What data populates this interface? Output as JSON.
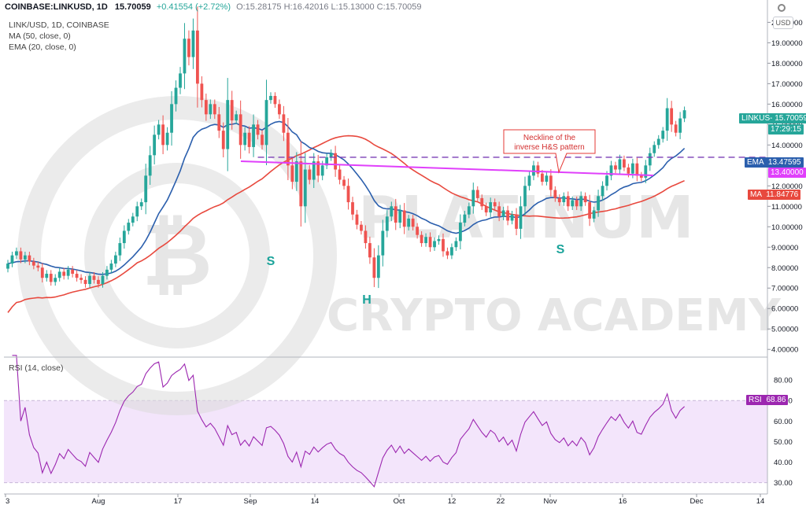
{
  "header": {
    "symbol": "COINBASE:LINKUSD, 1D",
    "price": "15.70059",
    "change": "+0.41554 (+2.72%)",
    "ohlc": "O:15.28175 H:16.42016 L:15.13000 C:15.70059",
    "subtitle": "LINK/USD, 1D, COINBASE",
    "ma_label": "MA (50, close, 0)",
    "ema_label": "EMA (20, close, 0)",
    "rsi_label": "RSI (14, close)",
    "currency": "USD"
  },
  "watermark": {
    "line1": "PLATINUM",
    "line2": "CRYPTO ACADEMY"
  },
  "annotations": {
    "neckline_line1": "Neckline of the",
    "neckline_line2": "inverse H&S pattern",
    "left_shoulder": "S",
    "head": "H",
    "right_shoulder": "S"
  },
  "tags": {
    "price_label": "LINKUS-",
    "price_value": "15.70059",
    "countdown": "17:29:15",
    "ema_label": "EMA",
    "ema_value": "13.47595",
    "level_value": "13.40000",
    "ma_label": "MA",
    "ma_value": "11.84776",
    "rsi_label": "RSI",
    "rsi_value": "68.86"
  },
  "colors": {
    "up": "#26a69a",
    "down": "#ef5350",
    "ema": "#2b5fad",
    "ma": "#e8493e",
    "neckline": "#e040fb",
    "dashed_level": "#7b3fb5",
    "rsi_line": "#9c27b0",
    "rsi_band": "#f3e5fb",
    "watermark": "#dadada"
  },
  "chart_data": {
    "type": "candlestick",
    "x_axis": [
      "3",
      "Aug",
      "17",
      "Sep",
      "14",
      "Oct",
      "12",
      "22",
      "Nov",
      "16",
      "Dec",
      "14"
    ],
    "y_axis": [
      "20.00000",
      "19.00000",
      "18.00000",
      "17.00000",
      "16.00000",
      "15.00000",
      "14.00000",
      "13.00000",
      "12.00000",
      "11.00000",
      "10.00000",
      "9.00000",
      "8.00000",
      "7.00000",
      "6.00000",
      "5.00000",
      "4.00000"
    ],
    "y_range": [
      3.7,
      20.4
    ],
    "rsi_axis": [
      "80.00",
      "70.00",
      "60.00",
      "50.00",
      "40.00",
      "30.00"
    ],
    "rsi_range": [
      26,
      90
    ],
    "rsi_band": [
      30,
      70
    ],
    "neckline_level": 13.4,
    "series": [
      {
        "name": "LINKUSD",
        "closes": [
          8.2,
          8.6,
          8.8,
          8.4,
          8.6,
          8.3,
          8.1,
          8.0,
          7.5,
          7.7,
          7.3,
          7.5,
          7.8,
          7.6,
          7.9,
          7.7,
          7.5,
          7.4,
          7.2,
          7.6,
          7.4,
          7.2,
          7.6,
          7.9,
          8.2,
          8.6,
          9.2,
          9.8,
          10.2,
          10.5,
          11.0,
          11.2,
          12.5,
          13.5,
          14.5,
          15.0,
          14.0,
          14.6,
          16.0,
          16.8,
          17.5,
          19.2,
          18.3,
          19.6,
          17.0,
          16.2,
          15.5,
          16.0,
          15.5,
          14.7,
          13.8,
          16.2,
          15.2,
          15.5,
          14.0,
          14.6,
          13.9,
          15.0,
          14.5,
          14.0,
          16.2,
          16.4,
          16.0,
          15.5,
          14.6,
          13.0,
          12.2,
          13.2,
          11.0,
          12.8,
          12.3,
          13.2,
          12.5,
          13.0,
          13.4,
          13.6,
          12.8,
          12.3,
          12.0,
          11.2,
          10.6,
          10.1,
          9.8,
          9.2,
          8.5,
          7.5,
          8.6,
          9.8,
          10.5,
          11.0,
          10.2,
          10.8,
          10.0,
          10.4,
          10.0,
          9.6,
          9.2,
          9.5,
          9.0,
          9.3,
          9.4,
          8.8,
          8.6,
          9.0,
          9.3,
          10.2,
          10.6,
          11.0,
          11.8,
          11.4,
          11.0,
          10.7,
          11.2,
          11.0,
          10.5,
          10.8,
          10.3,
          10.6,
          9.9,
          11.0,
          12.0,
          12.5,
          13.0,
          12.6,
          12.2,
          12.5,
          11.8,
          11.4,
          11.2,
          11.5,
          11.0,
          11.3,
          11.0,
          11.5,
          11.2,
          10.4,
          10.8,
          11.5,
          12.0,
          12.5,
          13.0,
          12.8,
          13.3,
          12.9,
          12.6,
          13.1,
          12.5,
          12.4,
          13.0,
          13.6,
          14.0,
          14.3,
          14.7,
          15.8,
          15.0,
          14.6,
          15.3,
          15.7
        ]
      },
      {
        "name": "EMA (20, close, 0)",
        "closes": []
      },
      {
        "name": "MA (50, close, 0)",
        "closes": []
      },
      {
        "name": "RSI (14, close)",
        "closes": []
      }
    ]
  }
}
